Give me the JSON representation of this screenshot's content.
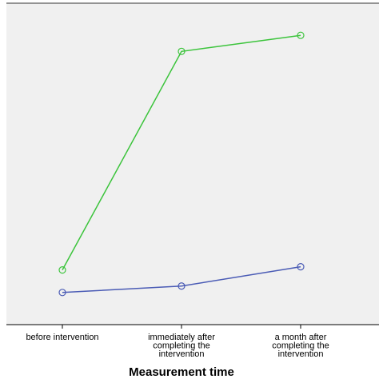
{
  "chart_data": {
    "type": "line",
    "xlabel": "Measurement time",
    "ylabel": "",
    "categories": [
      [
        "before intervention"
      ],
      [
        "immediately  after",
        "completing the",
        "intervention"
      ],
      [
        "a  month  after",
        "completing the",
        "intervention"
      ]
    ],
    "ylim": [
      0,
      100
    ],
    "grid": false,
    "series": [
      {
        "color": "#3cc43c",
        "values": [
          17,
          85,
          90
        ]
      },
      {
        "color": "#4a5bb5",
        "values": [
          10,
          12,
          18
        ]
      }
    ]
  }
}
